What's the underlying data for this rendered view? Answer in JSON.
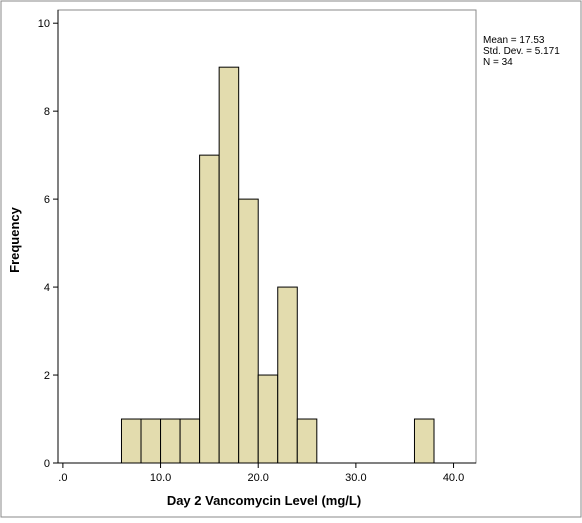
{
  "chart_data": {
    "type": "bar",
    "subtype": "histogram",
    "xlabel": "Day 2 Vancomycin Level (mg/L)",
    "ylabel": "Frequency",
    "xlim": [
      -0.5,
      42.3
    ],
    "ylim": [
      0,
      10.3
    ],
    "x_ticks": [
      0,
      10,
      20,
      30,
      40
    ],
    "x_tick_labels": [
      ".0",
      "10.0",
      "20.0",
      "30.0",
      "40.0"
    ],
    "y_ticks": [
      0,
      2,
      4,
      6,
      8,
      10
    ],
    "y_tick_labels": [
      "0",
      "2",
      "4",
      "6",
      "8",
      "10"
    ],
    "bin_width": 2,
    "bins": [
      {
        "x0": 6,
        "x1": 8,
        "count": 1
      },
      {
        "x0": 8,
        "x1": 10,
        "count": 1
      },
      {
        "x0": 10,
        "x1": 12,
        "count": 1
      },
      {
        "x0": 12,
        "x1": 14,
        "count": 1
      },
      {
        "x0": 14,
        "x1": 16,
        "count": 7
      },
      {
        "x0": 16,
        "x1": 18,
        "count": 9
      },
      {
        "x0": 18,
        "x1": 20,
        "count": 6
      },
      {
        "x0": 20,
        "x1": 22,
        "count": 2
      },
      {
        "x0": 22,
        "x1": 24,
        "count": 4
      },
      {
        "x0": 24,
        "x1": 26,
        "count": 1
      },
      {
        "x0": 36,
        "x1": 38,
        "count": 1
      }
    ],
    "stats": [
      "Mean = 17.53",
      "Std. Dev. = 5.171",
      "N = 34"
    ],
    "grid": false,
    "legend_placement": "top-right (outside plot)",
    "colors": {
      "bar_fill": "#E3DCAE",
      "bar_stroke": "#000000",
      "axis": "#000000",
      "frame": "#8A8A8A",
      "background": "#FFFFFF"
    }
  }
}
